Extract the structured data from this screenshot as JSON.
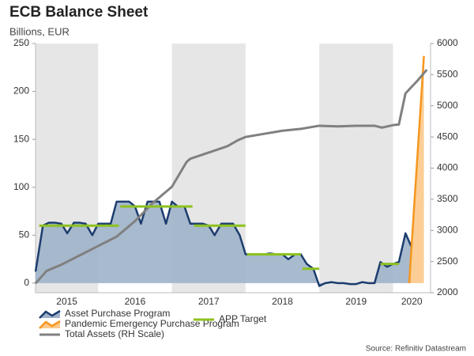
{
  "chart_data": {
    "type": "line",
    "title": "ECB Balance Sheet",
    "subtitle": "Billions, EUR",
    "source": "Source: Refinitiv Datastream",
    "xlim": [
      2015.15,
      2020.51
    ],
    "xticks": [
      {
        "value": 2015,
        "label": "2015"
      },
      {
        "value": 2016,
        "label": "2016"
      },
      {
        "value": 2017,
        "label": "2017"
      },
      {
        "value": 2018,
        "label": "2018"
      },
      {
        "value": 2019,
        "label": "2019"
      },
      {
        "value": 2020,
        "label": "2020"
      }
    ],
    "ylim": [
      -10,
      250
    ],
    "yticks": [
      0,
      50,
      100,
      150,
      200,
      250
    ],
    "y2lim": [
      2000,
      6000
    ],
    "y2ticks": [
      2000,
      2500,
      3000,
      3500,
      4000,
      4500,
      5000,
      5500,
      6000
    ],
    "year_shading": true,
    "legend": "bottom",
    "series": [
      {
        "name": "Asset Purchase Program",
        "color": "#1c3d6e",
        "fill": "#9fb2c9",
        "axis": "y",
        "x": [
          2015.15,
          2015.25,
          2015.33,
          2015.42,
          2015.5,
          2015.58,
          2015.67,
          2015.75,
          2015.83,
          2015.92,
          2016.0,
          2016.08,
          2016.17,
          2016.25,
          2016.33,
          2016.42,
          2016.5,
          2016.58,
          2016.67,
          2016.75,
          2016.83,
          2016.92,
          2017.0,
          2017.08,
          2017.17,
          2017.25,
          2017.33,
          2017.42,
          2017.5,
          2017.58,
          2017.67,
          2017.75,
          2017.83,
          2017.92,
          2018.0,
          2018.08,
          2018.17,
          2018.25,
          2018.33,
          2018.42,
          2018.5,
          2018.58,
          2018.67,
          2018.75,
          2018.83,
          2018.92,
          2019.0,
          2019.08,
          2019.17,
          2019.25,
          2019.33,
          2019.42,
          2019.5,
          2019.58,
          2019.67,
          2019.75,
          2019.83,
          2019.92,
          2020.0,
          2020.08,
          2020.17,
          2020.25
        ],
        "values": [
          12,
          60,
          63,
          63,
          62,
          52,
          63,
          63,
          62,
          50,
          62,
          62,
          62,
          85,
          85,
          85,
          80,
          62,
          85,
          85,
          85,
          62,
          85,
          80,
          80,
          62,
          62,
          62,
          60,
          50,
          62,
          62,
          62,
          50,
          30,
          30,
          30,
          30,
          31,
          30,
          30,
          25,
          30,
          30,
          20,
          15,
          -3,
          0,
          1,
          0,
          0,
          -1,
          -1,
          1,
          0,
          0,
          22,
          17,
          20,
          22,
          52,
          38
        ]
      },
      {
        "name": "Pandemic Emergency Purchase Program",
        "color": "#f5961e",
        "fill": "#fcc98a",
        "axis": "y",
        "x": [
          2020.22,
          2020.42
        ],
        "values": [
          0,
          237
        ]
      },
      {
        "name": "Total Assets (RH Scale)",
        "color": "#808080",
        "axis": "y2",
        "x": [
          2015.15,
          2015.3,
          2015.5,
          2015.75,
          2016.0,
          2016.25,
          2016.5,
          2016.75,
          2016.9,
          2017.0,
          2017.2,
          2017.25,
          2017.5,
          2017.75,
          2017.9,
          2018.0,
          2018.25,
          2018.5,
          2018.75,
          2019.0,
          2019.25,
          2019.5,
          2019.75,
          2019.85,
          2020.0,
          2020.08,
          2020.17,
          2020.33,
          2020.46
        ],
        "values": [
          2150,
          2350,
          2450,
          2600,
          2750,
          2900,
          3150,
          3450,
          3600,
          3700,
          4100,
          4150,
          4250,
          4350,
          4450,
          4500,
          4550,
          4600,
          4630,
          4680,
          4670,
          4680,
          4680,
          4650,
          4690,
          4700,
          5200,
          5400,
          5580
        ]
      },
      {
        "name": "APP Target",
        "color": "#8dc21f",
        "axis": "y",
        "x": [
          2015.2,
          2016.28,
          2016.28,
          2016.3,
          2017.28,
          2017.28,
          2017.3,
          2018.0,
          2018.0,
          2018.02,
          2018.75,
          2018.75,
          2018.77,
          2019.0,
          2019.0,
          2019.83,
          2020.08
        ],
        "values": [
          60,
          60,
          null,
          80,
          80,
          null,
          60,
          60,
          null,
          30,
          30,
          null,
          15,
          15,
          null,
          20,
          20
        ]
      }
    ]
  }
}
